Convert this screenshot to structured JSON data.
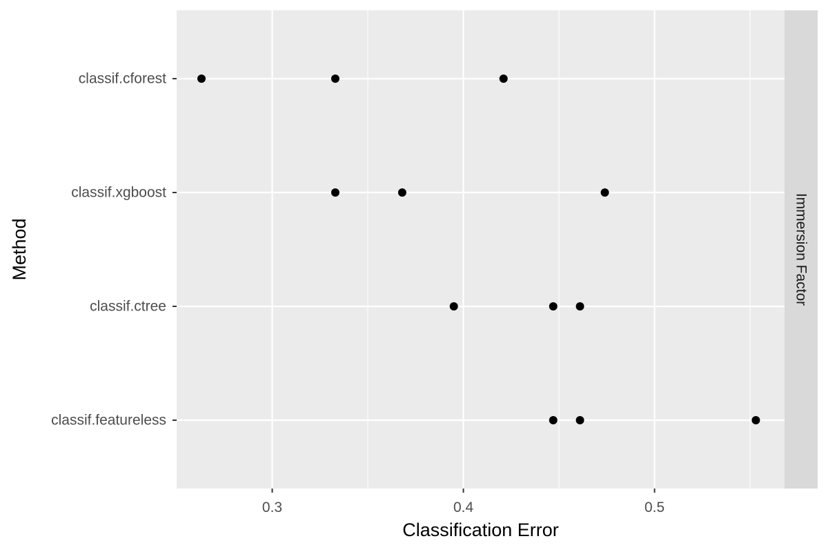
{
  "chart_data": {
    "type": "scatter",
    "title": "",
    "xlabel": "Classification Error",
    "ylabel": "Method",
    "facet_label": "Immersion Factor",
    "categories": [
      "classif.cforest",
      "classif.xgboost",
      "classif.ctree",
      "classif.featureless"
    ],
    "x_ticks": [
      0.3,
      0.4,
      0.5
    ],
    "x_tick_labels": [
      "0.3",
      "0.4",
      "0.5"
    ],
    "xlim": [
      0.25,
      0.568
    ],
    "grid": true,
    "legend": "none",
    "series": [
      {
        "points": [
          {
            "category": "classif.cforest",
            "x": 0.263
          },
          {
            "category": "classif.cforest",
            "x": 0.333
          },
          {
            "category": "classif.cforest",
            "x": 0.421
          },
          {
            "category": "classif.xgboost",
            "x": 0.333
          },
          {
            "category": "classif.xgboost",
            "x": 0.368
          },
          {
            "category": "classif.xgboost",
            "x": 0.474
          },
          {
            "category": "classif.ctree",
            "x": 0.395
          },
          {
            "category": "classif.ctree",
            "x": 0.447
          },
          {
            "category": "classif.ctree",
            "x": 0.461
          },
          {
            "category": "classif.featureless",
            "x": 0.447
          },
          {
            "category": "classif.featureless",
            "x": 0.461
          },
          {
            "category": "classif.featureless",
            "x": 0.553
          }
        ]
      }
    ],
    "colors": {
      "panel_background": "#ebebeb",
      "grid_major": "#ffffff",
      "strip_background": "#d9d9d9",
      "point": "#000000",
      "tick": "#333333"
    }
  }
}
